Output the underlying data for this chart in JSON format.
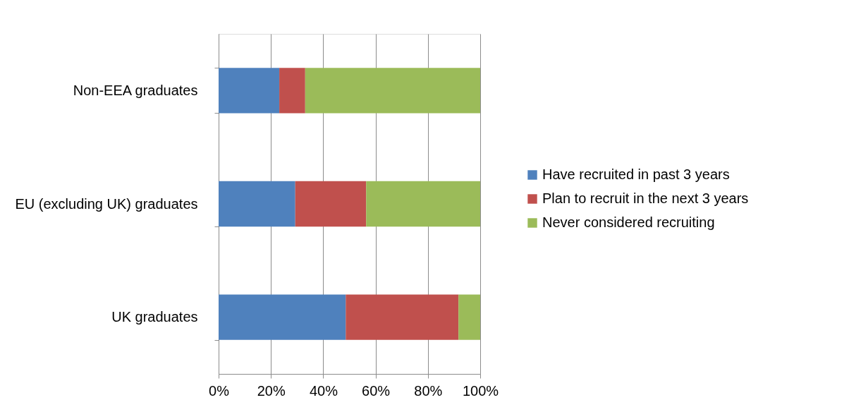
{
  "chart_data": {
    "type": "bar",
    "orientation": "horizontal",
    "stacked": true,
    "categories": [
      "Non-EEA graduates",
      "EU (excluding UK) graduates",
      "UK graduates"
    ],
    "series": [
      {
        "name": "Have recruited in past 3 years",
        "color": "#4f81bd",
        "values": [
          23.2,
          29.3,
          48.6
        ]
      },
      {
        "name": "Plan to recruit in the next 3 years",
        "color": "#c0504d",
        "values": [
          9.9,
          27.1,
          43.1
        ]
      },
      {
        "name": "Never considered recruiting",
        "color": "#9bbb59",
        "values": [
          66.9,
          43.6,
          8.3
        ]
      }
    ],
    "xlim": [
      0,
      100
    ],
    "xticks": [
      {
        "value": 0,
        "label": "0%"
      },
      {
        "value": 20,
        "label": "20%"
      },
      {
        "value": 40,
        "label": "40%"
      },
      {
        "value": 60,
        "label": "60%"
      },
      {
        "value": 80,
        "label": "80%"
      },
      {
        "value": 100,
        "label": "100%"
      }
    ],
    "grid": "x",
    "legend": "right"
  }
}
